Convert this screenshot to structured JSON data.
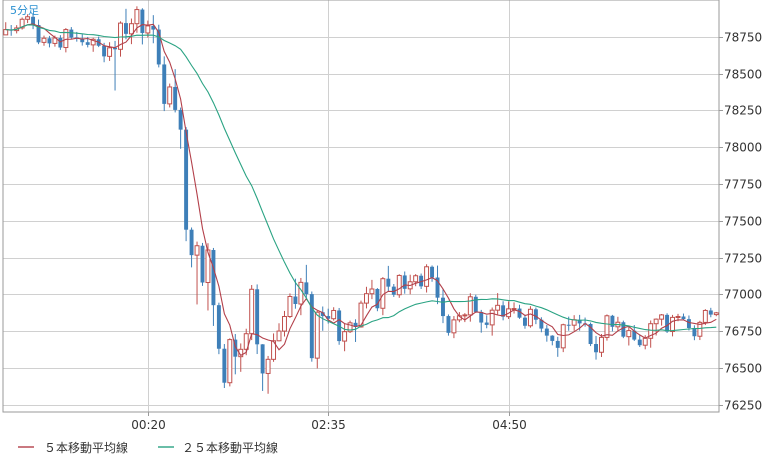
{
  "chart_data": {
    "type": "candlestick",
    "title": "5分足",
    "ylim": [
      76200,
      79000
    ],
    "y_ticks": [
      {
        "value": 76250,
        "label": "76250"
      },
      {
        "value": 76500,
        "label": "76500"
      },
      {
        "value": 76750,
        "label": "76750"
      },
      {
        "value": 77000,
        "label": "77000"
      },
      {
        "value": 77250,
        "label": "77250"
      },
      {
        "value": 77500,
        "label": "77500"
      },
      {
        "value": 77750,
        "label": "77750"
      },
      {
        "value": 78000,
        "label": "78000"
      },
      {
        "value": 78250,
        "label": "78250"
      },
      {
        "value": 78500,
        "label": "78500"
      },
      {
        "value": 78750,
        "label": "78750"
      }
    ],
    "x_ticks": [
      {
        "index": 26,
        "label": "00:20"
      },
      {
        "index": 59,
        "label": "02:35"
      },
      {
        "index": 92,
        "label": "04:50"
      }
    ],
    "bar_count": 131,
    "candles": [
      [
        78763,
        78849,
        78762,
        78799
      ],
      [
        78799,
        78830,
        78757,
        78792
      ],
      [
        78792,
        78829,
        78773,
        78810
      ],
      [
        78810,
        78881,
        78799,
        78869
      ],
      [
        78869,
        78903,
        78843,
        78886
      ],
      [
        78886,
        78906,
        78802,
        78830
      ],
      [
        78830,
        78867,
        78700,
        78712
      ],
      [
        78712,
        78758,
        78689,
        78740
      ],
      [
        78740,
        78756,
        78678,
        78705
      ],
      [
        78705,
        78758,
        78683,
        78742
      ],
      [
        78742,
        78761,
        78661,
        78677
      ],
      [
        78677,
        78809,
        78644,
        78799
      ],
      [
        78799,
        78816,
        78736,
        78745
      ],
      [
        78745,
        78783,
        78717,
        78739
      ],
      [
        78739,
        78767,
        78690,
        78713
      ],
      [
        78713,
        78749,
        78678,
        78695
      ],
      [
        78695,
        78743,
        78648,
        78733
      ],
      [
        78733,
        78751,
        78680,
        78689
      ],
      [
        78689,
        78709,
        78577,
        78617
      ],
      [
        78617,
        78713,
        78586,
        78675
      ],
      [
        78675,
        78722,
        78385,
        78665
      ],
      [
        78665,
        78855,
        78615,
        78843
      ],
      [
        78843,
        78940,
        78733,
        78770
      ],
      [
        78770,
        78874,
        78700,
        78839
      ],
      [
        78839,
        78957,
        78777,
        78935
      ],
      [
        78935,
        78944,
        78698,
        78776
      ],
      [
        78776,
        78860,
        78745,
        78824
      ],
      [
        78824,
        78897,
        78706,
        78799
      ],
      [
        78799,
        78832,
        78542,
        78562
      ],
      [
        78562,
        78617,
        78245,
        78294
      ],
      [
        78294,
        78432,
        78270,
        78409
      ],
      [
        78409,
        78530,
        78236,
        78253
      ],
      [
        78253,
        78269,
        77989,
        78119
      ],
      [
        78119,
        78136,
        77361,
        77439
      ],
      [
        77439,
        77454,
        77183,
        77266
      ],
      [
        77266,
        77358,
        76931,
        77330
      ],
      [
        77330,
        77349,
        77057,
        77080
      ],
      [
        77080,
        77347,
        76890,
        77301
      ],
      [
        77301,
        77315,
        76785,
        76926
      ],
      [
        76926,
        76943,
        76593,
        76630
      ],
      [
        76630,
        76662,
        76363,
        76399
      ],
      [
        76399,
        76701,
        76374,
        76692
      ],
      [
        76692,
        76730,
        76456,
        76576
      ],
      [
        76576,
        76666,
        76473,
        76626
      ],
      [
        76626,
        76766,
        76586,
        76732
      ],
      [
        76732,
        77063,
        76689,
        77034
      ],
      [
        77034,
        77067,
        76594,
        76660
      ],
      [
        76660,
        76661,
        76343,
        76462
      ],
      [
        76462,
        76581,
        76324,
        76558
      ],
      [
        76558,
        76734,
        76541,
        76684
      ],
      [
        76684,
        76803,
        76680,
        76750
      ],
      [
        76750,
        76887,
        76713,
        76849
      ],
      [
        76849,
        77006,
        76839,
        76985
      ],
      [
        76985,
        77106,
        76902,
        76934
      ],
      [
        76934,
        77111,
        76858,
        77081
      ],
      [
        77081,
        77200,
        76967,
        77001
      ],
      [
        77001,
        77019,
        76542,
        76566
      ],
      [
        76566,
        76887,
        76496,
        76878
      ],
      [
        76878,
        76917,
        76752,
        76852
      ],
      [
        76852,
        76902,
        76801,
        76834
      ],
      [
        76834,
        76912,
        76821,
        76890
      ],
      [
        76890,
        76907,
        76657,
        76682
      ],
      [
        76682,
        76802,
        76613,
        76746
      ],
      [
        76746,
        76821,
        76737,
        76806
      ],
      [
        76806,
        76830,
        76676,
        76778
      ],
      [
        76778,
        76957,
        76773,
        76940
      ],
      [
        76940,
        77051,
        76904,
        77004
      ],
      [
        77004,
        77098,
        76967,
        77036
      ],
      [
        77036,
        77042,
        76885,
        76905
      ],
      [
        76905,
        77117,
        76858,
        77106
      ],
      [
        77106,
        77193,
        77018,
        77052
      ],
      [
        77052,
        77070,
        76982,
        76997
      ],
      [
        76997,
        77136,
        76976,
        77128
      ],
      [
        77128,
        77155,
        77004,
        77037
      ],
      [
        77037,
        77133,
        77000,
        77085
      ],
      [
        77085,
        77137,
        77055,
        77126
      ],
      [
        77126,
        77141,
        77036,
        77054
      ],
      [
        77054,
        77204,
        77012,
        77187
      ],
      [
        77187,
        77196,
        77085,
        77114
      ],
      [
        77114,
        77195,
        76933,
        76977
      ],
      [
        76977,
        77034,
        76804,
        76852
      ],
      [
        76852,
        76863,
        76719,
        76738
      ],
      [
        76738,
        76852,
        76702,
        76826
      ],
      [
        76826,
        76879,
        76810,
        76854
      ],
      [
        76854,
        76872,
        76811,
        76860
      ],
      [
        76860,
        77007,
        76814,
        76983
      ],
      [
        76983,
        76997,
        76874,
        76880
      ],
      [
        76880,
        76894,
        76739,
        76808
      ],
      [
        76808,
        76857,
        76769,
        76792
      ],
      [
        76792,
        76910,
        76719,
        76892
      ],
      [
        76892,
        77008,
        76862,
        76925
      ],
      [
        76925,
        76953,
        76823,
        76848
      ],
      [
        76848,
        76952,
        76832,
        76901
      ],
      [
        76901,
        76945,
        76869,
        76903
      ],
      [
        76903,
        76929,
        76833,
        76841
      ],
      [
        76841,
        76861,
        76766,
        76786
      ],
      [
        76786,
        76919,
        76773,
        76898
      ],
      [
        76898,
        76910,
        76797,
        76827
      ],
      [
        76827,
        76844,
        76742,
        76767
      ],
      [
        76767,
        76791,
        76678,
        76719
      ],
      [
        76719,
        76722,
        76653,
        76683
      ],
      [
        76683,
        76711,
        76575,
        76636
      ],
      [
        76636,
        76800,
        76607,
        76793
      ],
      [
        76793,
        76848,
        76752,
        76790
      ],
      [
        76790,
        76858,
        76752,
        76827
      ],
      [
        76827,
        76860,
        76753,
        76802
      ],
      [
        76802,
        76842,
        76780,
        76798
      ],
      [
        76798,
        76808,
        76648,
        76662
      ],
      [
        76662,
        76717,
        76556,
        76606
      ],
      [
        76606,
        76730,
        76574,
        76707
      ],
      [
        76707,
        76863,
        76685,
        76854
      ],
      [
        76854,
        76860,
        76748,
        76779
      ],
      [
        76779,
        76847,
        76754,
        76810
      ],
      [
        76810,
        76821,
        76702,
        76712
      ],
      [
        76712,
        76778,
        76652,
        76753
      ],
      [
        76753,
        76791,
        76683,
        76692
      ],
      [
        76692,
        76724,
        76642,
        76654
      ],
      [
        76654,
        76722,
        76626,
        76701
      ],
      [
        76701,
        76822,
        76637,
        76800
      ],
      [
        76800,
        76836,
        76720,
        76831
      ],
      [
        76831,
        76866,
        76787,
        76860
      ],
      [
        76860,
        76871,
        76737,
        76747
      ],
      [
        76747,
        76860,
        76714,
        76843
      ],
      [
        76843,
        76867,
        76817,
        76849
      ],
      [
        76849,
        76869,
        76827,
        76831
      ],
      [
        76831,
        76856,
        76754,
        76771
      ],
      [
        76771,
        76789,
        76688,
        76715
      ],
      [
        76715,
        76820,
        76689,
        76809
      ],
      [
        76809,
        76899,
        76791,
        76890
      ],
      [
        76890,
        76908,
        76844,
        76862
      ],
      [
        76862,
        76880,
        76851,
        76874
      ]
    ],
    "series": [
      {
        "name": "５本移動平均線",
        "color": "#b3404a",
        "period": 5
      },
      {
        "name": "２５本移動平均線",
        "color": "#2aa383",
        "period": 25
      }
    ],
    "colors": {
      "up": "#c0504d",
      "down": "#3e7fb8",
      "grid": "#d0d0d0",
      "axis": "#9a9a9a"
    }
  }
}
